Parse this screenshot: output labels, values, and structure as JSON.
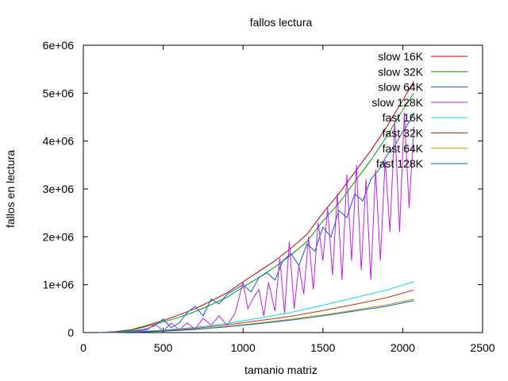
{
  "chart_data": {
    "type": "line",
    "title": "fallos lectura",
    "xlabel": "tamanio matriz",
    "ylabel": "fallos en lectura",
    "xlim": [
      0,
      2500
    ],
    "ylim": [
      0,
      6000000
    ],
    "xticks": [
      0,
      500,
      1000,
      1500,
      2000,
      2500
    ],
    "xtick_labels": [
      "0",
      "500",
      "1000",
      "1500",
      "2000",
      "2500"
    ],
    "yticks": [
      0,
      1000000,
      2000000,
      3000000,
      4000000,
      5000000,
      6000000
    ],
    "ytick_labels": [
      "0",
      "1e+06",
      "2e+06",
      "3e+06",
      "4e+06",
      "5e+06",
      "6e+06"
    ],
    "grid": false,
    "legend_position": "top-right",
    "series": [
      {
        "name": "slow 16K",
        "color": "#c00000",
        "x": [
          100,
          200,
          300,
          400,
          500,
          600,
          700,
          800,
          900,
          1000,
          1100,
          1200,
          1300,
          1400,
          1500,
          1600,
          1700,
          1800,
          1900,
          2000,
          2070
        ],
        "y": [
          0,
          20000,
          60000,
          150000,
          250000,
          370000,
          500000,
          660000,
          830000,
          1060000,
          1280000,
          1500000,
          1760000,
          2050000,
          2500000,
          2900000,
          3350000,
          3800000,
          4300000,
          4850000,
          5250000
        ]
      },
      {
        "name": "slow 32K",
        "color": "#00a000",
        "x": [
          100,
          200,
          300,
          400,
          500,
          600,
          700,
          800,
          900,
          1000,
          1100,
          1200,
          1300,
          1400,
          1500,
          1600,
          1700,
          1800,
          1900,
          2000,
          2070
        ],
        "y": [
          0,
          15000,
          50000,
          130000,
          220000,
          320000,
          440000,
          580000,
          740000,
          950000,
          1150000,
          1370000,
          1620000,
          1900000,
          2330000,
          2700000,
          3150000,
          3600000,
          4100000,
          4650000,
          5000000
        ]
      },
      {
        "name": "slow 64K",
        "color": "#0060d0",
        "x": [
          100,
          200,
          300,
          400,
          450,
          500,
          550,
          600,
          650,
          700,
          750,
          800,
          850,
          900,
          950,
          1000,
          1050,
          1100,
          1150,
          1200,
          1250,
          1300,
          1350,
          1400,
          1450,
          1500,
          1550,
          1600,
          1650,
          1700,
          1750,
          1800,
          1850,
          1900,
          1950,
          2000,
          2050,
          2070
        ],
        "y": [
          0,
          10000,
          30000,
          80000,
          150000,
          280000,
          100000,
          200000,
          420000,
          550000,
          350000,
          700000,
          600000,
          800000,
          900000,
          1000000,
          850000,
          1150000,
          1250000,
          1100000,
          1500000,
          1650000,
          1400000,
          1850000,
          1700000,
          2200000,
          2000000,
          2550000,
          2400000,
          2900000,
          2750000,
          3200000,
          3400000,
          3700000,
          3900000,
          4200000,
          4450000,
          4600000
        ]
      },
      {
        "name": "slow 128K",
        "color": "#c020e0",
        "x": [
          100,
          300,
          400,
          450,
          500,
          550,
          600,
          650,
          700,
          750,
          800,
          850,
          900,
          950,
          1000,
          1030,
          1060,
          1100,
          1130,
          1160,
          1200,
          1230,
          1260,
          1290,
          1320,
          1350,
          1380,
          1410,
          1440,
          1470,
          1500,
          1530,
          1560,
          1590,
          1620,
          1650,
          1680,
          1710,
          1740,
          1770,
          1800,
          1830,
          1860,
          1890,
          1920,
          1950,
          1980,
          2010,
          2040,
          2070
        ],
        "y": [
          0,
          20000,
          60000,
          180000,
          30000,
          200000,
          60000,
          200000,
          70000,
          300000,
          150000,
          350000,
          150000,
          400000,
          1050000,
          500000,
          700000,
          900000,
          350000,
          1050000,
          450000,
          1550000,
          400000,
          1900000,
          500000,
          1400000,
          800000,
          2000000,
          900000,
          2300000,
          1500000,
          2600000,
          1200000,
          2900000,
          1100000,
          3300000,
          1500000,
          3500000,
          1300000,
          3200000,
          1100000,
          3400000,
          1500000,
          3600000,
          2100000,
          4400000,
          2100000,
          4600000,
          2600000,
          4300000
        ]
      },
      {
        "name": "fast 16K",
        "color": "#00e0e0",
        "x": [
          100,
          300,
          500,
          700,
          900,
          1100,
          1300,
          1500,
          1700,
          1900,
          2070
        ],
        "y": [
          0,
          15000,
          50000,
          110000,
          190000,
          300000,
          420000,
          570000,
          730000,
          890000,
          1060000
        ]
      },
      {
        "name": "fast 32K",
        "color": "#c03000",
        "x": [
          100,
          300,
          500,
          700,
          900,
          1100,
          1300,
          1500,
          1700,
          1900,
          2070
        ],
        "y": [
          0,
          12000,
          40000,
          90000,
          160000,
          250000,
          340000,
          460000,
          590000,
          730000,
          890000
        ]
      },
      {
        "name": "fast 64K",
        "color": "#c0a000",
        "x": [
          100,
          300,
          500,
          700,
          900,
          1100,
          1300,
          1500,
          1700,
          1900,
          2070
        ],
        "y": [
          0,
          10000,
          30000,
          70000,
          130000,
          200000,
          280000,
          370000,
          470000,
          580000,
          700000
        ]
      },
      {
        "name": "fast 128K",
        "color": "#1060c0",
        "x": [
          100,
          300,
          500,
          700,
          900,
          1100,
          1300,
          1500,
          1700,
          1900,
          2070
        ],
        "y": [
          0,
          9000,
          28000,
          65000,
          120000,
          185000,
          260000,
          350000,
          450000,
          550000,
          670000
        ]
      }
    ]
  }
}
